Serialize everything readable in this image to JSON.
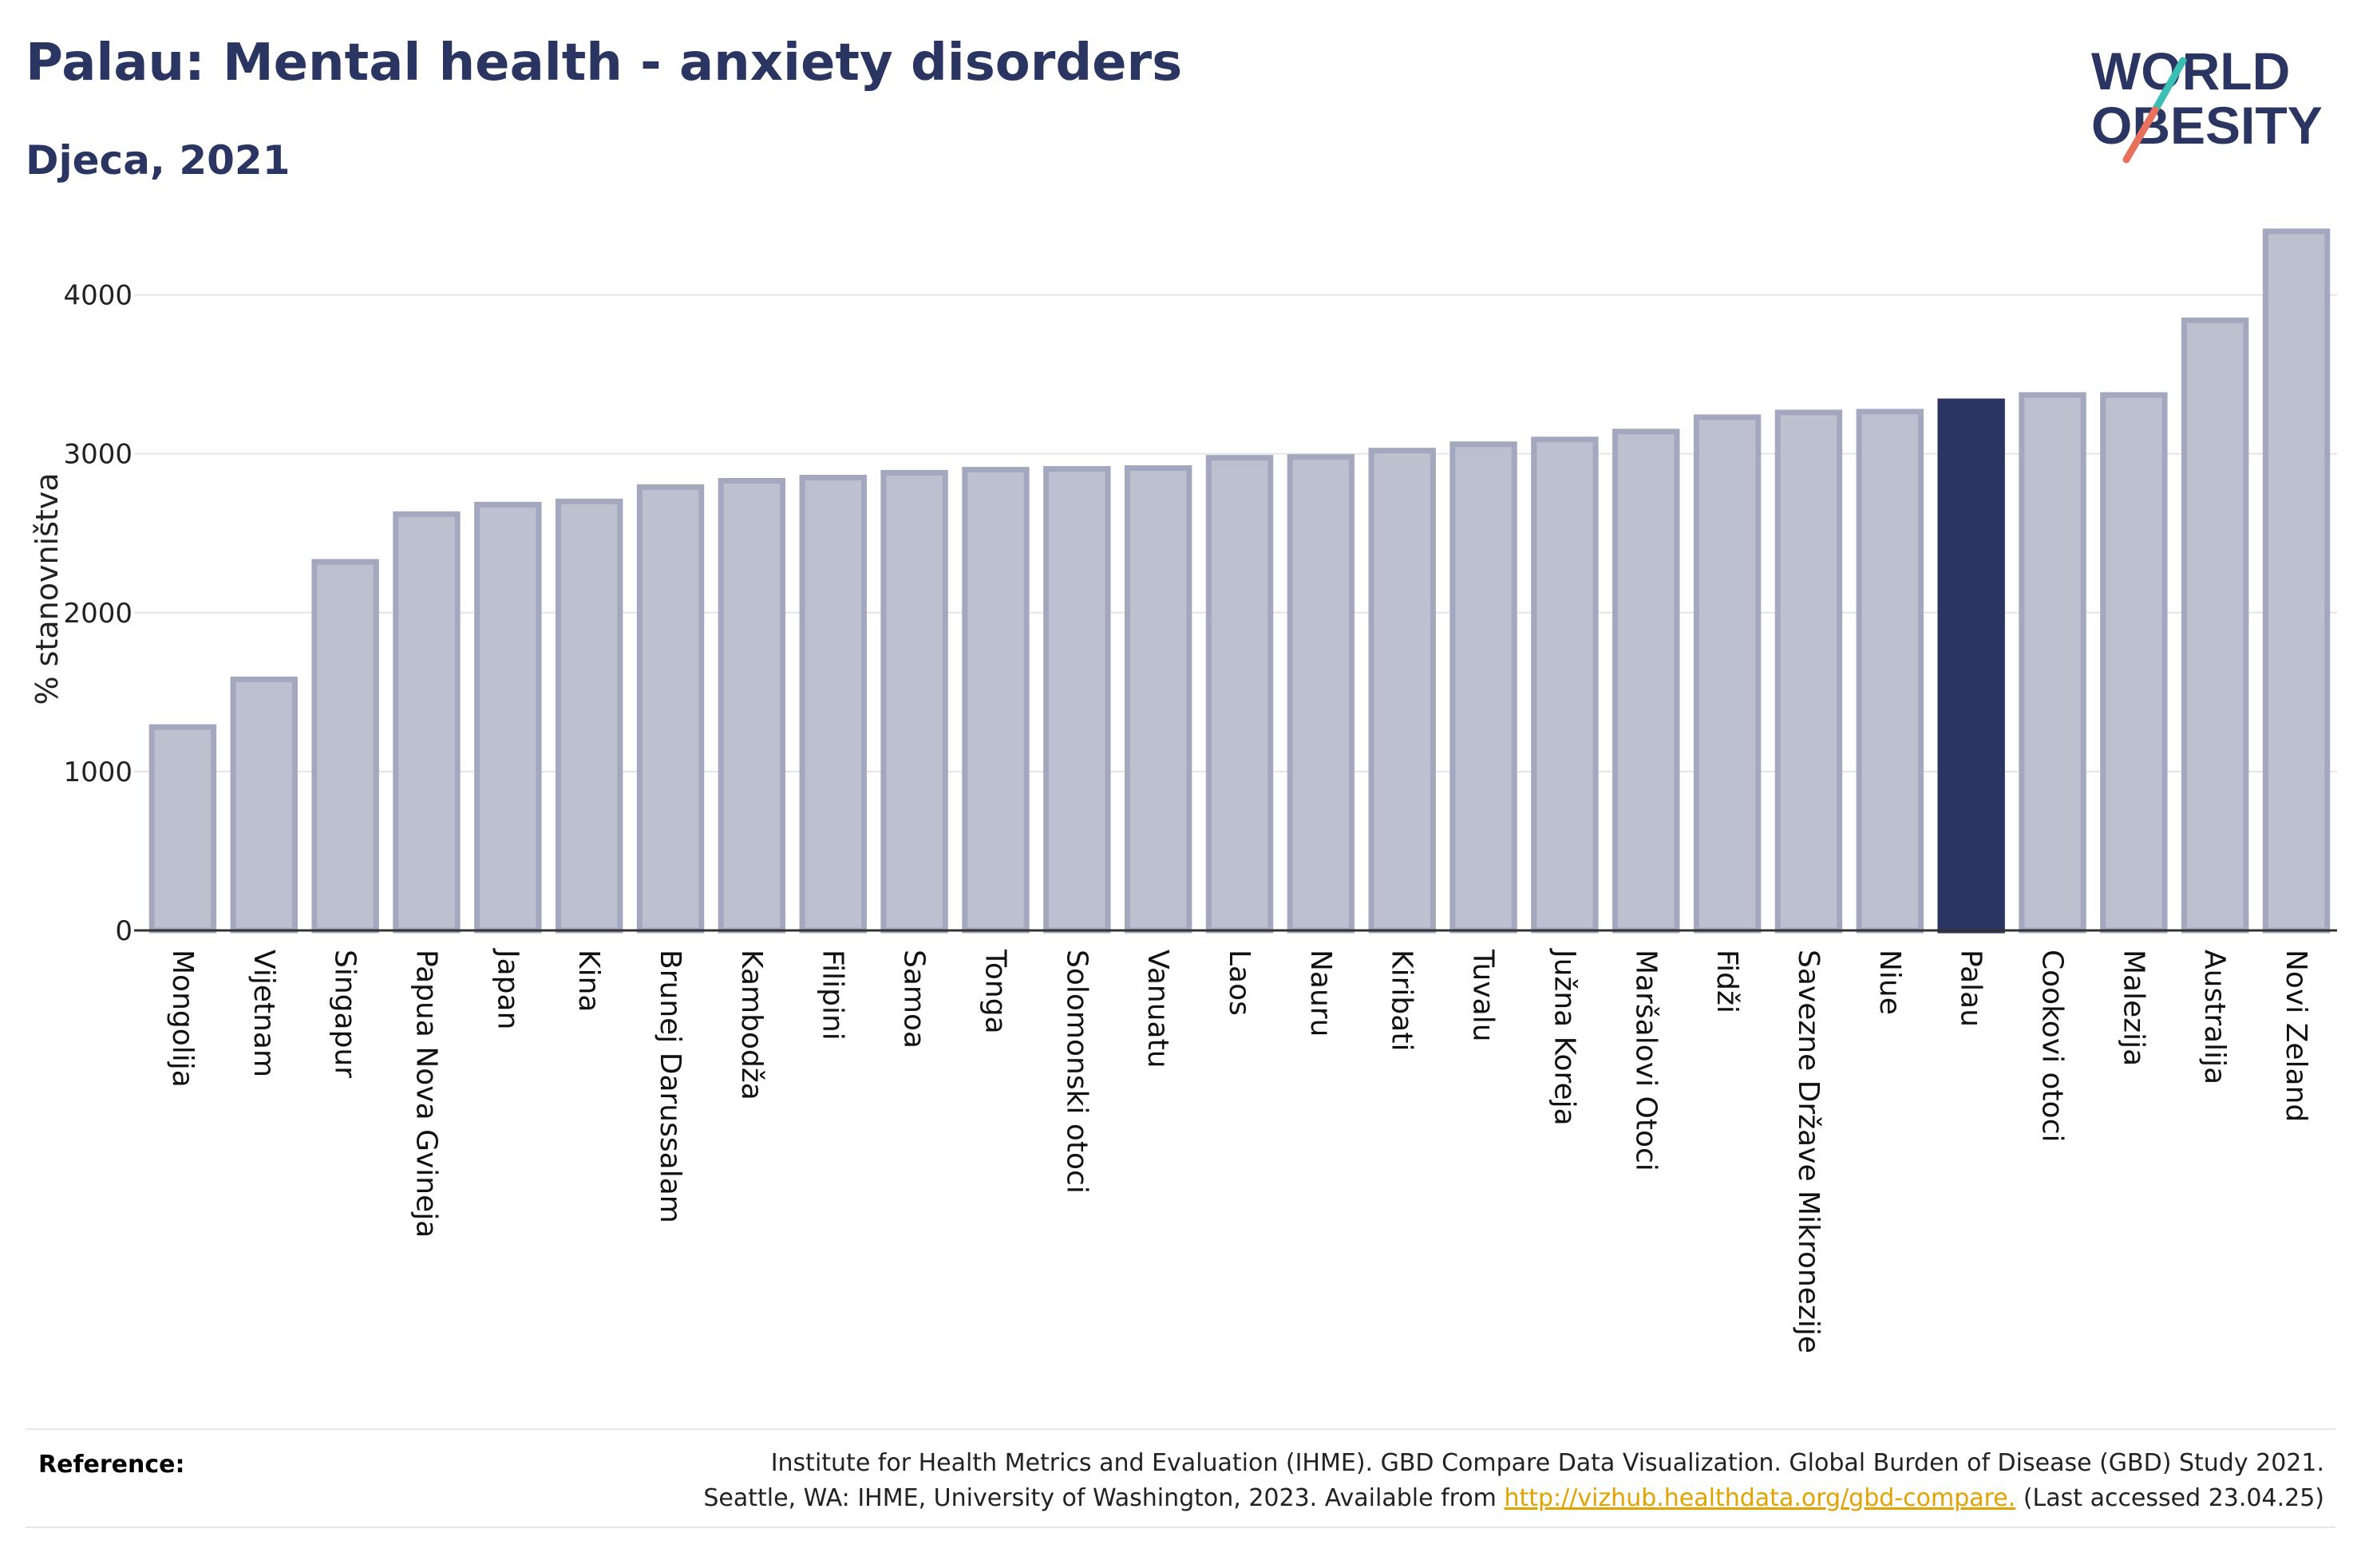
{
  "header": {
    "title": "Palau: Mental health - anxiety disorders",
    "subtitle": "Djeca, 2021"
  },
  "logo": {
    "line1": "WORLD",
    "line2": "OBESITY"
  },
  "colors": {
    "bar": "#bcc0cf",
    "bar_border": "#a3a8bf",
    "highlight": "#2a3561",
    "grid": "#e5e5e5",
    "logo_teal": "#3bbfb5",
    "logo_coral": "#e8715e"
  },
  "chart_data": {
    "type": "bar",
    "title": "Palau: Mental health - anxiety disorders",
    "subtitle": "Djeca, 2021",
    "ylabel": "% stanovništva",
    "xlabel": "",
    "ylim": [
      0,
      4500
    ],
    "yticks": [
      0,
      1000,
      2000,
      3000,
      4000
    ],
    "grid": true,
    "highlight": "Palau",
    "categories": [
      "Mongolija",
      "Vijetnam",
      "Singapur",
      "Papua Nova Gvineja",
      "Japan",
      "Kina",
      "Brunej Darussalam",
      "Kambodža",
      "Filipini",
      "Samoa",
      "Tonga",
      "Solomonski otoci",
      "Vanuatu",
      "Laos",
      "Nauru",
      "Kiribati",
      "Tuvalu",
      "Južna Koreja",
      "Maršalovi Otoci",
      "Fidži",
      "Savezne Države Mikronezije",
      "Niue",
      "Palau",
      "Cookovi otoci",
      "Malezija",
      "Australija",
      "Novi Zeland"
    ],
    "values": [
      1280,
      1580,
      2320,
      2620,
      2680,
      2700,
      2790,
      2830,
      2850,
      2880,
      2900,
      2905,
      2910,
      2975,
      2980,
      3020,
      3060,
      3090,
      3140,
      3230,
      3260,
      3265,
      3330,
      3370,
      3370,
      3840,
      4400
    ]
  },
  "footer": {
    "reference_label": "Reference:",
    "reference_line1": "Institute for Health Metrics and Evaluation (IHME). GBD Compare Data Visualization. Global Burden of Disease (GBD) Study 2021.",
    "reference_line2_prefix": "Seattle, WA: IHME, University of Washington, 2023. Available from ",
    "reference_link": "http://vizhub.healthdata.org/gbd-compare.",
    "reference_line2_suffix": " (Last accessed 23.04.25)"
  }
}
